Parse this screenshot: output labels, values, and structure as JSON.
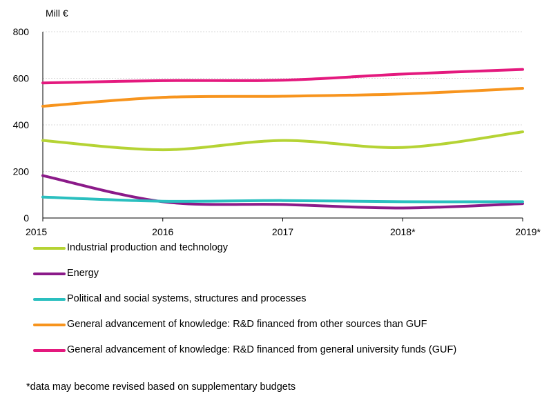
{
  "chart_data": {
    "type": "line",
    "unit_label": "Mill €",
    "x": [
      "2015",
      "2016",
      "2017",
      "2018*",
      "2019*"
    ],
    "ylim": [
      0,
      800
    ],
    "yticks": [
      0,
      200,
      400,
      600,
      800
    ],
    "grid": true,
    "legend_position": "bottom",
    "series": [
      {
        "name": "Industrial production and technology",
        "color": "#b5d334",
        "values": [
          333,
          293,
          333,
          303,
          370
        ]
      },
      {
        "name": "Energy",
        "color": "#8b1a89",
        "values": [
          182,
          70,
          58,
          43,
          62
        ]
      },
      {
        "name": "Political and social systems, structures and processes",
        "color": "#2abfbf",
        "values": [
          90,
          72,
          75,
          70,
          70
        ]
      },
      {
        "name": "General advancement of knowledge: R&D financed from other sources than GUF",
        "color": "#f7941d",
        "values": [
          480,
          518,
          523,
          533,
          557
        ]
      },
      {
        "name": "General advancement of knowledge: R&D financed from general university funds (GUF)",
        "color": "#e4197e",
        "values": [
          580,
          590,
          592,
          618,
          638
        ]
      }
    ],
    "footnote": "*data may become revised based on supplementary budgets"
  }
}
